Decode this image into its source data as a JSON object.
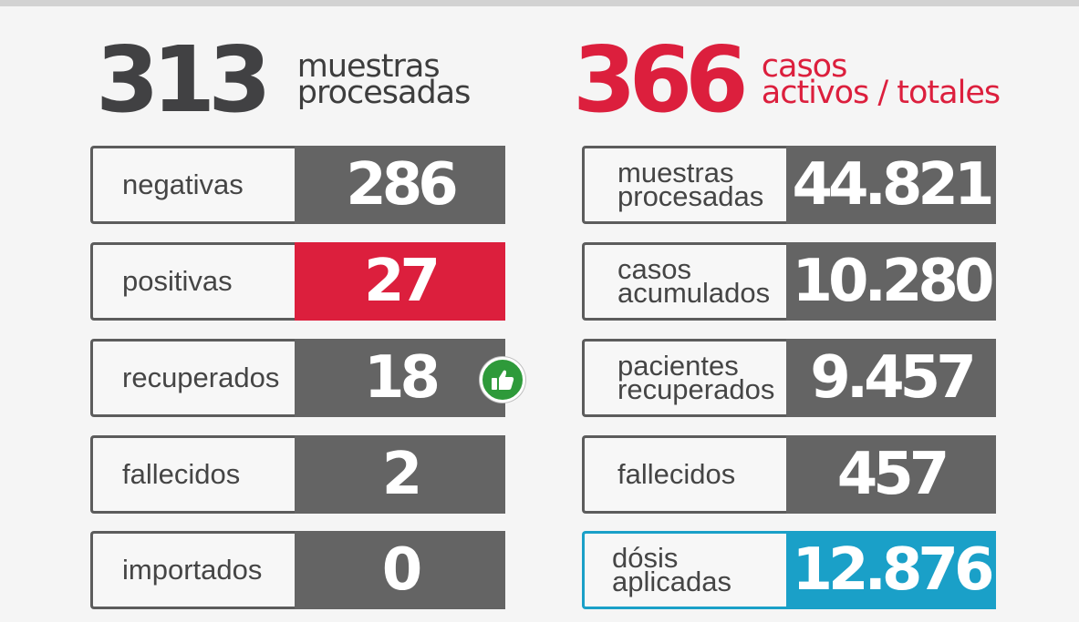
{
  "summary_left": {
    "number": "313",
    "caption_line1": "muestras",
    "caption_line2": "procesadas"
  },
  "summary_right": {
    "number": "366",
    "caption_line1": "casos",
    "caption_line2": "activos / totales"
  },
  "left_rows": [
    {
      "label": "negativas",
      "value": "286"
    },
    {
      "label": "positivas",
      "value": "27"
    },
    {
      "label": "recuperados",
      "value": "18"
    },
    {
      "label": "fallecidos",
      "value": "2"
    },
    {
      "label": "importados",
      "value": "0"
    }
  ],
  "right_rows": [
    {
      "label_line1": "muestras",
      "label_line2": "procesadas",
      "value": "44.821"
    },
    {
      "label_line1": "casos",
      "label_line2": "acumulados",
      "value": "10.280"
    },
    {
      "label_line1": "pacientes",
      "label_line2": "recuperados",
      "value": "9.457"
    },
    {
      "label": "fallecidos",
      "value": "457"
    },
    {
      "label": "dósis aplicadas",
      "value": "12.876"
    }
  ],
  "icons": {
    "recovered_badge": "thumbs-up-icon"
  },
  "colors": {
    "red": "#dc1f3d",
    "gray": "#646464",
    "blue": "#1aa0c8",
    "green": "#2e9a3a"
  }
}
